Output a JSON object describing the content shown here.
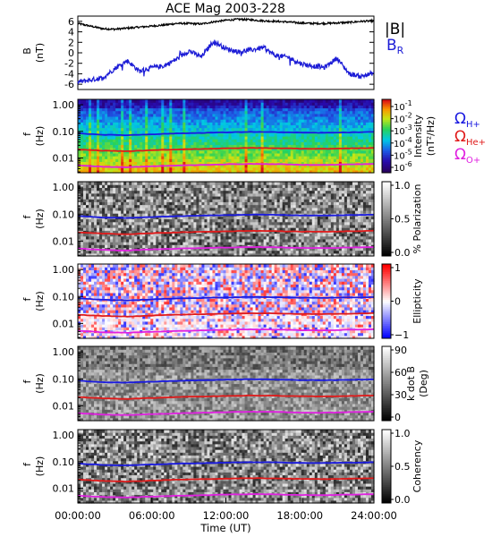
{
  "title": "ACE Mag 2003-228",
  "colors": {
    "B_total": "#000000",
    "B_R": "#1c1cd6",
    "H_plus": "#1a1ae0",
    "He_plus": "#e01a1a",
    "O_plus": "#e020e0"
  },
  "chart_data": [
    {
      "type": "line",
      "panel": "magnetic-field",
      "ylabel": "B",
      "yunits": "(nT)",
      "ylim": [
        -7,
        7
      ],
      "yticks": [
        6,
        4,
        2,
        0,
        -2,
        -4,
        -6
      ],
      "xlim": [
        0,
        24
      ],
      "series": [
        {
          "name": "|B|",
          "color": "#000000",
          "x": [
            0,
            1,
            2,
            3,
            4,
            5,
            6,
            7,
            8,
            9,
            10,
            11,
            12,
            13,
            14,
            15,
            16,
            17,
            18,
            19,
            20,
            21,
            22,
            23,
            24
          ],
          "y": [
            5.6,
            5.1,
            4.6,
            4.5,
            4.7,
            4.9,
            5.1,
            5.3,
            5.6,
            5.6,
            5.5,
            5.9,
            6.2,
            6.4,
            6.3,
            6.1,
            6.0,
            5.9,
            5.7,
            5.6,
            5.6,
            5.7,
            5.8,
            6.0,
            6.1
          ]
        },
        {
          "name": "B",
          "subscript": "R",
          "color": "#1c1cd6",
          "x": [
            0,
            1,
            2,
            3,
            4,
            5,
            6,
            7,
            8,
            9,
            10,
            11,
            12,
            13,
            14,
            15,
            16,
            17,
            18,
            19,
            20,
            21,
            22,
            23,
            24
          ],
          "y": [
            -5.6,
            -5.2,
            -4.8,
            -3.0,
            -1.5,
            -3.5,
            -2.8,
            -2.5,
            -1.2,
            0.4,
            -0.8,
            2.2,
            0.8,
            0.2,
            0.5,
            1.0,
            -0.5,
            -0.8,
            -2.0,
            -2.5,
            -2.8,
            -1.0,
            -4.0,
            -4.5,
            -3.8
          ]
        }
      ]
    },
    {
      "type": "heatmap",
      "panel": "intensity",
      "ylabel": "f",
      "yunits": "(Hz)",
      "ylog": true,
      "ylim": [
        0.0028,
        1.6
      ],
      "yticks": [
        "1.00",
        "0.10",
        "0.01"
      ],
      "colorbar": {
        "label_line1": "Intensity",
        "label_line2": "(nT²/Hz)",
        "log": true,
        "range": [
          1e-07,
          1
        ],
        "ticks": [
          {
            "base": "10",
            "exp": "-1"
          },
          {
            "base": "10",
            "exp": "-2"
          },
          {
            "base": "10",
            "exp": "-3"
          },
          {
            "base": "10",
            "exp": "-4"
          },
          {
            "base": "10",
            "exp": "-5"
          },
          {
            "base": "10",
            "exp": "-6"
          }
        ]
      },
      "legend": [
        {
          "symbol": "Ω",
          "sub": "H+",
          "color": "#1a1ae0"
        },
        {
          "symbol": "Ω",
          "sub": "He+",
          "color": "#e01a1a"
        },
        {
          "symbol": "Ω",
          "sub": "O+",
          "color": "#e020e0"
        }
      ]
    },
    {
      "type": "heatmap",
      "panel": "polarization",
      "ylabel": "f",
      "yunits": "(Hz)",
      "ylog": true,
      "ylim": [
        0.0028,
        1.6
      ],
      "yticks": [
        "1.00",
        "0.10",
        "0.01"
      ],
      "colorbar": {
        "label_line1": "% Polarization",
        "range": [
          0,
          1
        ],
        "ticks": [
          "1.0",
          "0.5",
          "0.0"
        ]
      }
    },
    {
      "type": "heatmap",
      "panel": "ellipticity",
      "ylabel": "f",
      "yunits": "(Hz)",
      "ylog": true,
      "ylim": [
        0.0028,
        1.6
      ],
      "yticks": [
        "1.00",
        "0.10",
        "0.01"
      ],
      "colorbar": {
        "label_line1": "Ellipticity",
        "range": [
          -1,
          1
        ],
        "ticks": [
          "1",
          "0",
          "−1"
        ]
      }
    },
    {
      "type": "heatmap",
      "panel": "k-dot-b",
      "ylabel": "f",
      "yunits": "(Hz)",
      "ylog": true,
      "ylim": [
        0.0028,
        1.6
      ],
      "yticks": [
        "1.00",
        "0.10",
        "0.01"
      ],
      "colorbar": {
        "label_line1": "k dot B",
        "label_line2": "(Deg)",
        "range": [
          0,
          90
        ],
        "ticks": [
          "90",
          "60",
          "30",
          "0"
        ]
      }
    },
    {
      "type": "heatmap",
      "panel": "coherency",
      "ylabel": "f",
      "yunits": "(Hz)",
      "ylog": true,
      "ylim": [
        0.0028,
        1.6
      ],
      "yticks": [
        "1.00",
        "0.10",
        "0.01"
      ],
      "colorbar": {
        "label_line1": "Coherency",
        "range": [
          0,
          1
        ],
        "ticks": [
          "1.0",
          "0.5",
          "0.0"
        ]
      }
    }
  ],
  "gyrofrequency_lines": {
    "x": [
      0,
      2,
      4,
      6,
      8,
      10,
      12,
      14,
      16,
      18,
      20,
      22,
      24
    ],
    "H_plus": [
      0.085,
      0.075,
      0.072,
      0.078,
      0.084,
      0.088,
      0.092,
      0.096,
      0.094,
      0.09,
      0.089,
      0.092,
      0.095
    ],
    "He_plus": [
      0.021,
      0.019,
      0.018,
      0.0195,
      0.021,
      0.022,
      0.023,
      0.024,
      0.0235,
      0.0225,
      0.0222,
      0.023,
      0.024
    ],
    "O_plus": [
      0.0053,
      0.0047,
      0.0045,
      0.0049,
      0.0052,
      0.0055,
      0.0058,
      0.006,
      0.0059,
      0.0056,
      0.0055,
      0.0058,
      0.006
    ]
  },
  "x_axis": {
    "ticks": [
      "00:00:00",
      "06:00:00",
      "12:00:00",
      "18:00:00",
      "24:00:00"
    ],
    "label": "Time (UT)"
  }
}
